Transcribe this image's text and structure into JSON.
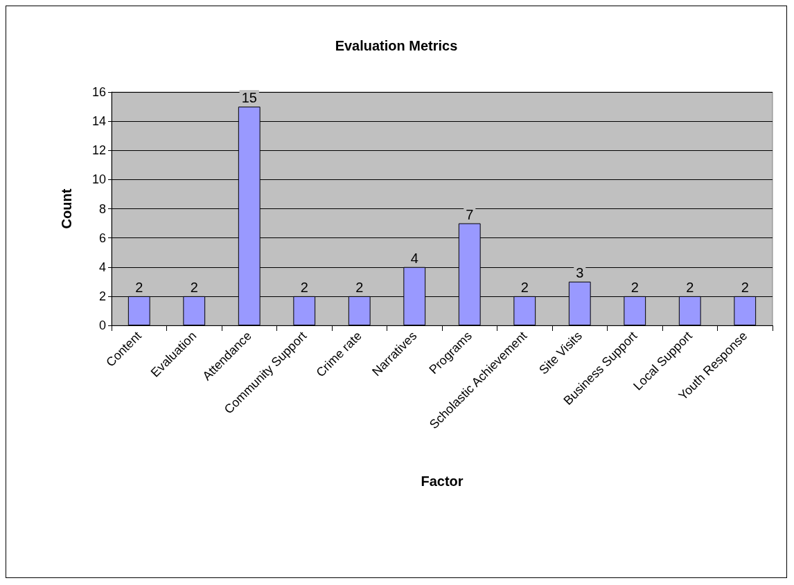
{
  "chart_data": {
    "type": "bar",
    "title": "Evaluation Metrics",
    "xlabel": "Factor",
    "ylabel": "Count",
    "categories": [
      "Content",
      "Evaluation",
      "Attendance",
      "Community Support",
      "Crime rate",
      "Narratives",
      "Programs",
      "Scholastic Achievement",
      "Site Visits",
      "Business Support",
      "Local Support",
      "Youth Response"
    ],
    "values": [
      2,
      2,
      15,
      2,
      2,
      4,
      7,
      2,
      3,
      2,
      2,
      2
    ],
    "color": "#9999ff",
    "ylim": [
      0,
      16
    ],
    "yticks": [
      0,
      2,
      4,
      6,
      8,
      10,
      12,
      14,
      16
    ],
    "grid": "y",
    "data_labels": true
  }
}
